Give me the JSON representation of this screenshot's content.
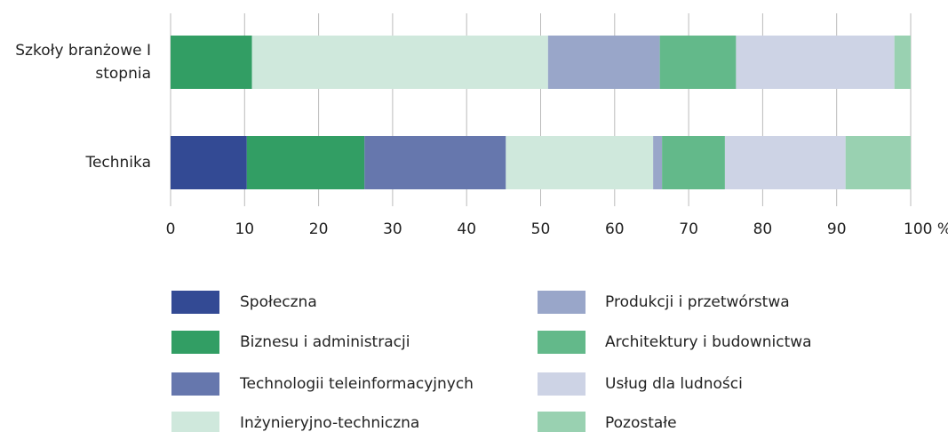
{
  "chart_data": {
    "type": "stacked-bar-horizontal",
    "categories": [
      "Szkoły branżowe I stopnia",
      "Technika"
    ],
    "series": [
      {
        "name": "Społeczna",
        "color": "#334a94",
        "values": [
          0,
          10.3
        ]
      },
      {
        "name": "Biznesu i administracji",
        "color": "#329e64",
        "values": [
          11.0,
          15.9
        ]
      },
      {
        "name": "Technologii teleinformacyjnych",
        "color": "#6677ad",
        "values": [
          0,
          19.1
        ]
      },
      {
        "name": "Inżynieryjno-techniczna",
        "color": "#cfe8dc",
        "values": [
          40.0,
          19.9
        ]
      },
      {
        "name": "Produkcji i przetwórstwa",
        "color": "#99a6c9",
        "values": [
          15.1,
          1.2
        ]
      },
      {
        "name": "Architektury i budownictwa",
        "color": "#63b98a",
        "values": [
          10.3,
          8.5
        ]
      },
      {
        "name": "Usług dla ludności",
        "color": "#cdd3e5",
        "values": [
          21.4,
          16.3
        ]
      },
      {
        "name": "Pozostałe",
        "color": "#99d1b1",
        "values": [
          2.2,
          8.8
        ]
      }
    ],
    "xlim": [
      0,
      100
    ],
    "xticks": [
      0,
      10,
      20,
      30,
      40,
      50,
      60,
      70,
      80,
      90,
      {
        "value": 100,
        "label": "100 %"
      }
    ],
    "grid": true
  }
}
